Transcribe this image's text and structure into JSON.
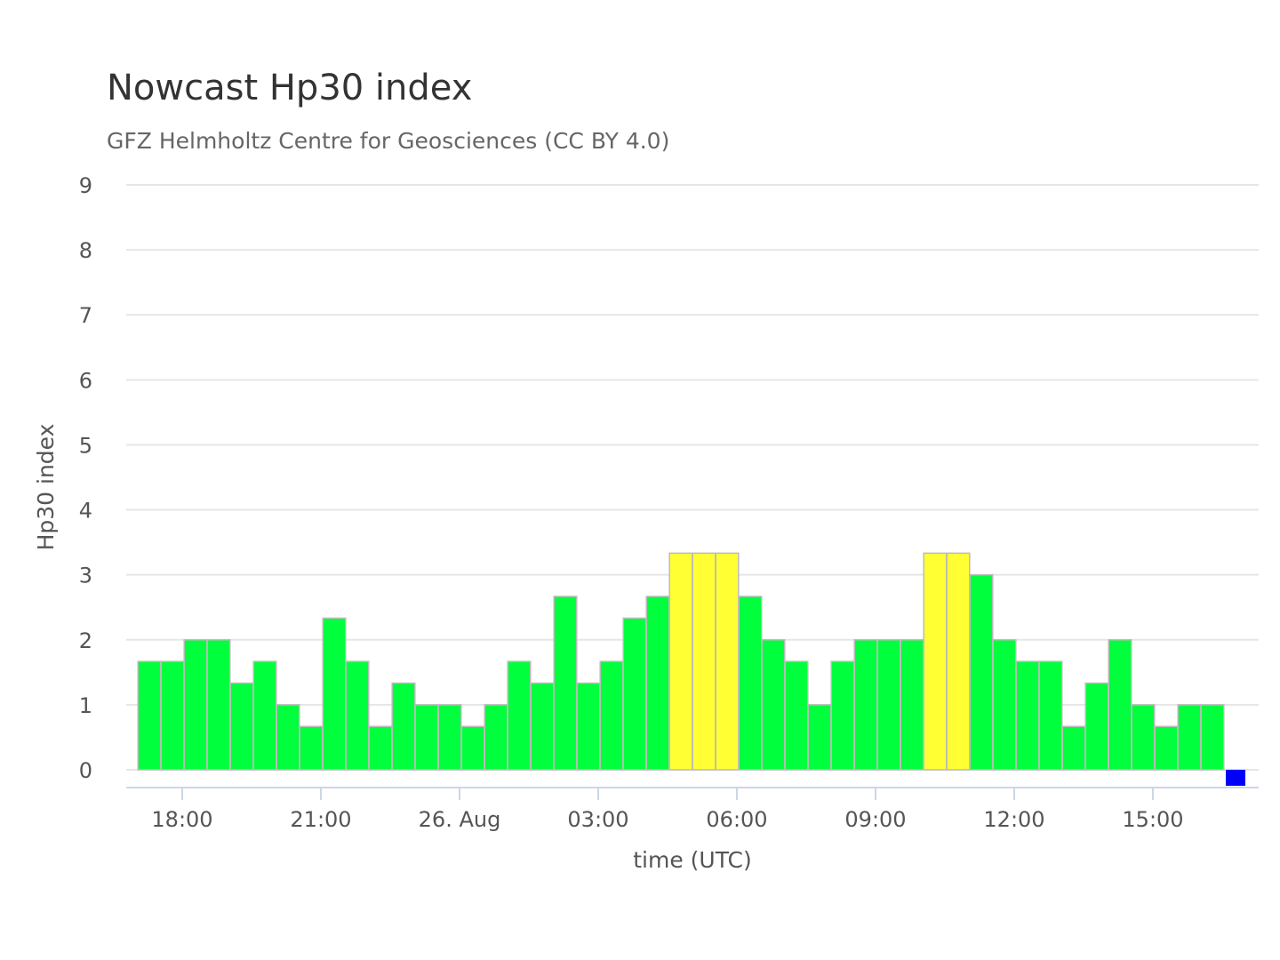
{
  "chart_data": {
    "type": "bar",
    "title": "Nowcast Hp30 index",
    "subtitle": "GFZ Helmholtz Centre for Geosciences (CC BY 4.0)",
    "ylabel": "Hp30 index",
    "xlabel": "time (UTC)",
    "ylim": [
      0,
      9
    ],
    "yticks": [
      "0",
      "1",
      "2",
      "3",
      "4",
      "5",
      "6",
      "7",
      "8",
      "9"
    ],
    "xticks": [
      {
        "label": "18:00",
        "hour": 0
      },
      {
        "label": "21:00",
        "hour": 3
      },
      {
        "label": "26. Aug",
        "hour": 6
      },
      {
        "label": "03:00",
        "hour": 9
      },
      {
        "label": "06:00",
        "hour": 12
      },
      {
        "label": "09:00",
        "hour": 15
      },
      {
        "label": "12:00",
        "hour": 18
      },
      {
        "label": "15:00",
        "hour": 21
      }
    ],
    "series": [
      {
        "start_time": "25 Aug 17:00 UTC",
        "interval_minutes": 30,
        "values": [
          1.667,
          1.667,
          2,
          2,
          1.333,
          1.667,
          1,
          0.667,
          2.333,
          1.667,
          0.667,
          1.333,
          1,
          1,
          0.667,
          1,
          1.667,
          1.333,
          2.667,
          1.333,
          1.667,
          2.333,
          2.667,
          3.333,
          3.333,
          3.333,
          2.667,
          2,
          1.667,
          1,
          1.667,
          2,
          2,
          2,
          3.333,
          3.333,
          3,
          2,
          1.667,
          1.667,
          0.667,
          1.333,
          2,
          1,
          0.667,
          1,
          1,
          0
        ],
        "colors": [
          "#00ff3c",
          "#00ff3c",
          "#00ff3c",
          "#00ff3c",
          "#00ff3c",
          "#00ff3c",
          "#00ff3c",
          "#00ff3c",
          "#00ff3c",
          "#00ff3c",
          "#00ff3c",
          "#00ff3c",
          "#00ff3c",
          "#00ff3c",
          "#00ff3c",
          "#00ff3c",
          "#00ff3c",
          "#00ff3c",
          "#00ff3c",
          "#00ff3c",
          "#00ff3c",
          "#00ff3c",
          "#00ff3c",
          "#ffff33",
          "#ffff33",
          "#ffff33",
          "#00ff3c",
          "#00ff3c",
          "#00ff3c",
          "#00ff3c",
          "#00ff3c",
          "#00ff3c",
          "#00ff3c",
          "#00ff3c",
          "#ffff33",
          "#ffff33",
          "#00ff3c",
          "#00ff3c",
          "#00ff3c",
          "#00ff3c",
          "#00ff3c",
          "#00ff3c",
          "#00ff3c",
          "#00ff3c",
          "#00ff3c",
          "#00ff3c",
          "#00ff3c",
          "#0000ff"
        ]
      }
    ],
    "legend": "none",
    "grid": true,
    "colors": {
      "quiet": "#00ff3c",
      "active": "#ffff33",
      "latest": "#0000ff",
      "gridline": "#e6e6e6",
      "axis_line": "#ccd6eb"
    }
  }
}
